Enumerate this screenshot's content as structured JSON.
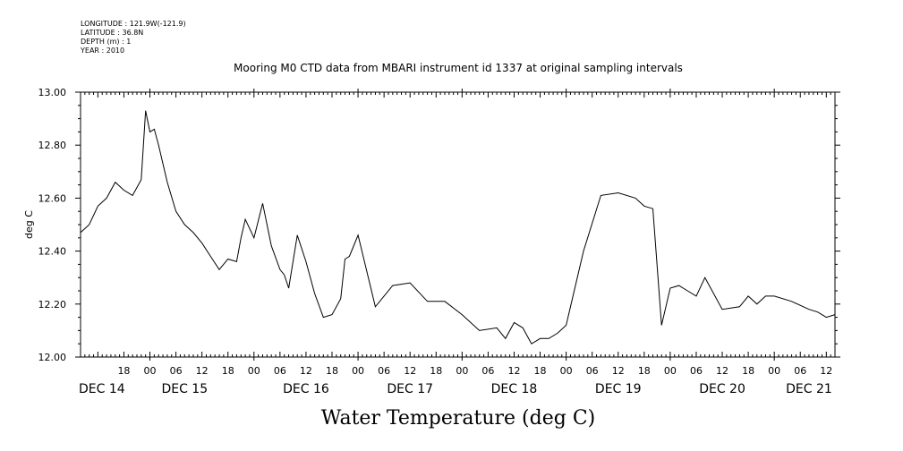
{
  "meta": {
    "longitude": "LONGITUDE : 121.9W(-121.9)",
    "latitude": "LATITUDE : 36.8N",
    "depth": "DEPTH (m) : 1",
    "year": "YEAR : 2010"
  },
  "chart_data": {
    "type": "line",
    "title": "Mooring M0 CTD data from MBARI instrument id 1337 at original sampling intervals",
    "xlabel": "Water Temperature (deg C)",
    "ylabel": "deg C",
    "ylim": [
      12.0,
      13.0
    ],
    "yticks": [
      "12.00",
      "12.20",
      "12.40",
      "12.60",
      "12.80",
      "13.00"
    ],
    "xlim_hours": [
      "2010-12-14 08:00",
      "2010-12-21 14:00"
    ],
    "hour_tick_labels": [
      "18",
      "00",
      "06",
      "12",
      "18",
      "00",
      "06",
      "12",
      "18",
      "00",
      "06",
      "12",
      "18",
      "00",
      "06",
      "12",
      "18",
      "00",
      "06",
      "12",
      "18",
      "00",
      "06",
      "12",
      "18",
      "00",
      "06",
      "12"
    ],
    "day_labels": [
      "DEC 14",
      "DEC 15",
      "DEC 16",
      "DEC 17",
      "DEC 18",
      "DEC 19",
      "DEC 20",
      "DEC 21"
    ],
    "grid": false,
    "series": [
      {
        "x": [
          "2010-12-14 08:00",
          "2010-12-14 10:00",
          "2010-12-14 12:00",
          "2010-12-14 14:00",
          "2010-12-14 16:00",
          "2010-12-14 18:00",
          "2010-12-14 20:00",
          "2010-12-14 22:00",
          "2010-12-14 23:00",
          "2010-12-15 00:00",
          "2010-12-15 01:00",
          "2010-12-15 02:00",
          "2010-12-15 04:00",
          "2010-12-15 06:00",
          "2010-12-15 08:00",
          "2010-12-15 10:00",
          "2010-12-15 12:00",
          "2010-12-15 14:00",
          "2010-12-15 16:00",
          "2010-12-15 18:00",
          "2010-12-15 20:00",
          "2010-12-15 21:00",
          "2010-12-15 22:00",
          "2010-12-16 00:00",
          "2010-12-16 02:00",
          "2010-12-16 04:00",
          "2010-12-16 06:00",
          "2010-12-16 07:00",
          "2010-12-16 08:00",
          "2010-12-16 10:00",
          "2010-12-16 12:00",
          "2010-12-16 14:00",
          "2010-12-16 16:00",
          "2010-12-16 18:00",
          "2010-12-16 20:00",
          "2010-12-16 21:00",
          "2010-12-16 22:00",
          "2010-12-17 00:00",
          "2010-12-17 04:00",
          "2010-12-17 08:00",
          "2010-12-17 12:00",
          "2010-12-17 16:00",
          "2010-12-17 20:00",
          "2010-12-18 00:00",
          "2010-12-18 04:00",
          "2010-12-18 08:00",
          "2010-12-18 10:00",
          "2010-12-18 12:00",
          "2010-12-18 14:00",
          "2010-12-18 16:00",
          "2010-12-18 18:00",
          "2010-12-18 20:00",
          "2010-12-18 22:00",
          "2010-12-19 00:00",
          "2010-12-19 04:00",
          "2010-12-19 08:00",
          "2010-12-19 12:00",
          "2010-12-19 16:00",
          "2010-12-19 18:00",
          "2010-12-19 20:00",
          "2010-12-19 22:00",
          "2010-12-20 00:00",
          "2010-12-20 02:00",
          "2010-12-20 04:00",
          "2010-12-20 06:00",
          "2010-12-20 08:00",
          "2010-12-20 12:00",
          "2010-12-20 16:00",
          "2010-12-20 18:00",
          "2010-12-20 20:00",
          "2010-12-20 22:00",
          "2010-12-21 00:00",
          "2010-12-21 04:00",
          "2010-12-21 08:00",
          "2010-12-21 10:00",
          "2010-12-21 12:00",
          "2010-12-21 14:00"
        ],
        "y": [
          12.47,
          12.5,
          12.57,
          12.6,
          12.66,
          12.63,
          12.61,
          12.67,
          12.93,
          12.85,
          12.86,
          12.8,
          12.66,
          12.55,
          12.5,
          12.47,
          12.43,
          12.38,
          12.33,
          12.37,
          12.36,
          12.45,
          12.52,
          12.45,
          12.58,
          12.42,
          12.33,
          12.31,
          12.26,
          12.46,
          12.36,
          12.24,
          12.15,
          12.16,
          12.22,
          12.37,
          12.38,
          12.46,
          12.19,
          12.27,
          12.28,
          12.21,
          12.21,
          12.16,
          12.1,
          12.11,
          12.07,
          12.13,
          12.11,
          12.05,
          12.07,
          12.07,
          12.09,
          12.12,
          12.4,
          12.61,
          12.62,
          12.6,
          12.57,
          12.56,
          12.12,
          12.26,
          12.27,
          12.25,
          12.23,
          12.3,
          12.18,
          12.19,
          12.23,
          12.2,
          12.23,
          12.23,
          12.21,
          12.18,
          12.17,
          12.15,
          12.16
        ]
      }
    ]
  }
}
